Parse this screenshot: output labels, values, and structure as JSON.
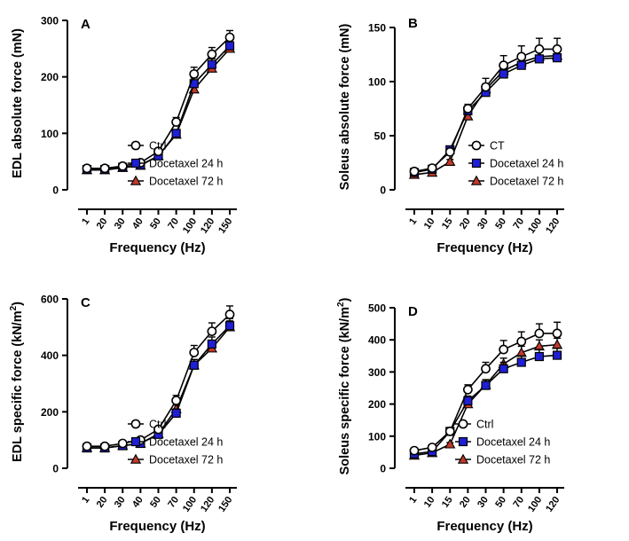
{
  "chart_data": [
    {
      "id": "A",
      "type": "line",
      "panel_label": "A",
      "title": "",
      "ylabel": "EDL absolute force (mN)",
      "xlabel": "Frequency (Hz)",
      "categories": [
        "1",
        "20",
        "30",
        "40",
        "50",
        "70",
        "100",
        "120",
        "150"
      ],
      "ylim": [
        0,
        300
      ],
      "yticks": [
        "0",
        "100",
        "200",
        "300"
      ],
      "legend_position": "bottom-right",
      "series": [
        {
          "name": "Ctrl",
          "marker": "circle",
          "color": "#ffffff",
          "values": [
            38,
            38,
            42,
            48,
            68,
            120,
            205,
            240,
            270
          ],
          "errors": [
            4,
            4,
            4,
            4,
            5,
            8,
            12,
            12,
            12
          ]
        },
        {
          "name": "Docetaxel 24 h",
          "marker": "square",
          "color": "#1f1fd6",
          "values": [
            36,
            36,
            40,
            44,
            60,
            100,
            188,
            222,
            255
          ],
          "errors": [
            3,
            3,
            3,
            3,
            4,
            6,
            10,
            10,
            10
          ]
        },
        {
          "name": "Docetaxel 72 h",
          "marker": "triangle",
          "color": "#c0392b",
          "values": [
            35,
            35,
            39,
            43,
            60,
            98,
            178,
            215,
            250
          ],
          "errors": [
            3,
            3,
            3,
            3,
            4,
            6,
            9,
            9,
            9
          ]
        }
      ]
    },
    {
      "id": "B",
      "type": "line",
      "panel_label": "B",
      "title": "",
      "ylabel": "Soleus absolute force (mN)",
      "xlabel": "Frequency (Hz)",
      "categories": [
        "1",
        "10",
        "15",
        "20",
        "30",
        "50",
        "70",
        "100",
        "120"
      ],
      "ylim": [
        0,
        150
      ],
      "yticks": [
        "0",
        "50",
        "100",
        "150"
      ],
      "legend_position": "bottom-right",
      "series": [
        {
          "name": "CT",
          "marker": "circle",
          "color": "#ffffff",
          "values": [
            17,
            20,
            35,
            75,
            95,
            115,
            123,
            130,
            130
          ],
          "errors": [
            2,
            2,
            3,
            4,
            8,
            9,
            10,
            10,
            10
          ]
        },
        {
          "name": "Docetaxel 24 h",
          "marker": "square",
          "color": "#1f1fd6",
          "values": [
            16,
            19,
            37,
            73,
            90,
            107,
            115,
            121,
            122
          ],
          "errors": [
            2,
            2,
            3,
            4,
            6,
            8,
            8,
            9,
            9
          ]
        },
        {
          "name": "Docetaxel 72 h",
          "marker": "triangle",
          "color": "#c0392b",
          "values": [
            14,
            16,
            26,
            68,
            93,
            110,
            118,
            123,
            124
          ],
          "errors": [
            2,
            2,
            2,
            3,
            5,
            6,
            6,
            6,
            6
          ]
        }
      ]
    },
    {
      "id": "C",
      "type": "line",
      "panel_label": "C",
      "title": "",
      "ylabel": "EDL specific force (kN/m",
      "ylabel_sup": "2",
      "ylabel_end": ")",
      "xlabel": "Frequency (Hz)",
      "categories": [
        "1",
        "20",
        "30",
        "40",
        "50",
        "70",
        "100",
        "120",
        "150"
      ],
      "ylim": [
        0,
        600
      ],
      "yticks": [
        "0",
        "200",
        "400",
        "600"
      ],
      "legend_position": "bottom-right",
      "series": [
        {
          "name": "Ctrl",
          "marker": "circle",
          "color": "#ffffff",
          "values": [
            78,
            78,
            88,
            100,
            138,
            240,
            410,
            485,
            545
          ],
          "errors": [
            8,
            8,
            8,
            8,
            10,
            18,
            25,
            30,
            30
          ]
        },
        {
          "name": "Docetaxel 24 h",
          "marker": "square",
          "color": "#1f1fd6",
          "values": [
            72,
            72,
            80,
            88,
            120,
            195,
            365,
            440,
            505
          ],
          "errors": [
            6,
            6,
            6,
            6,
            8,
            15,
            20,
            25,
            25
          ]
        },
        {
          "name": "Docetaxel 72 h",
          "marker": "triangle",
          "color": "#c0392b",
          "values": [
            72,
            72,
            80,
            88,
            122,
            210,
            365,
            425,
            500
          ],
          "errors": [
            6,
            6,
            6,
            6,
            8,
            14,
            20,
            22,
            22
          ]
        }
      ]
    },
    {
      "id": "D",
      "type": "line",
      "panel_label": "D",
      "title": "",
      "ylabel": "Soleus specific force (kN/m",
      "ylabel_sup": "2",
      "ylabel_end": ")",
      "xlabel": "Frequency (Hz)",
      "categories": [
        "1",
        "10",
        "15",
        "20",
        "30",
        "50",
        "70",
        "100",
        "120"
      ],
      "ylim": [
        0,
        500
      ],
      "yticks": [
        "0",
        "100",
        "200",
        "300",
        "400",
        "500"
      ],
      "legend_position": "bottom-right",
      "series": [
        {
          "name": "Ctrl",
          "marker": "circle",
          "color": "#ffffff",
          "values": [
            55,
            65,
            115,
            245,
            310,
            370,
            395,
            420,
            420
          ],
          "errors": [
            5,
            5,
            10,
            15,
            20,
            28,
            30,
            30,
            35
          ]
        },
        {
          "name": "Docetaxel 24 h",
          "marker": "square",
          "color": "#1f1fd6",
          "values": [
            45,
            52,
            115,
            210,
            258,
            310,
            330,
            348,
            352
          ],
          "errors": [
            4,
            4,
            8,
            15,
            18,
            20,
            20,
            22,
            22
          ]
        },
        {
          "name": "Docetaxel 72 h",
          "marker": "triangle",
          "color": "#c0392b",
          "values": [
            40,
            48,
            75,
            200,
            260,
            325,
            360,
            380,
            385
          ],
          "errors": [
            4,
            4,
            5,
            12,
            15,
            18,
            20,
            20,
            20
          ]
        }
      ]
    }
  ]
}
